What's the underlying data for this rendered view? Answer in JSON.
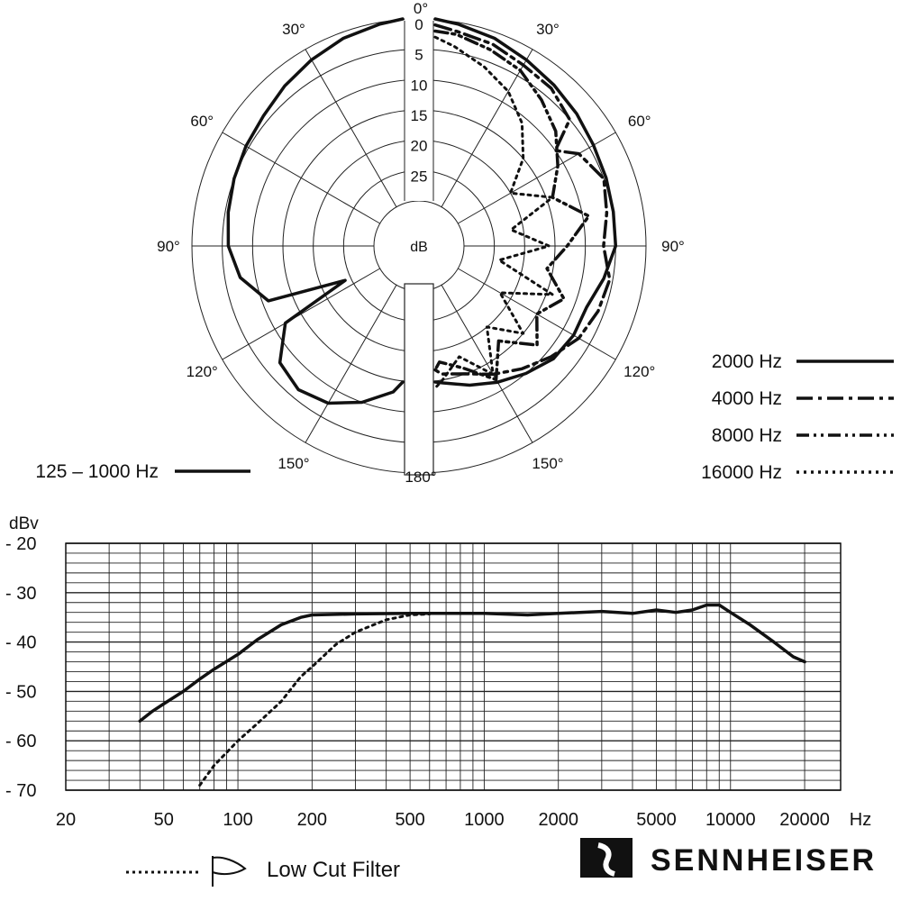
{
  "chart_data": [
    {
      "type": "polar",
      "center_label": "dB",
      "radial_ticks": [
        "0",
        "5",
        "10",
        "15",
        "20",
        "25"
      ],
      "radial_values": [
        0,
        5,
        10,
        15,
        20,
        25
      ],
      "angle_labels": {
        "left": [
          "30°",
          "60°",
          "90°",
          "120°",
          "150°"
        ],
        "right": [
          "30°",
          "60°",
          "90°",
          "120°",
          "150°"
        ],
        "top": "0°",
        "bottom": "180°"
      },
      "series": [
        {
          "name": "125 – 1000 Hz",
          "side": "left",
          "style": "solid",
          "angles": [
            0,
            10,
            20,
            30,
            40,
            50,
            60,
            70,
            80,
            90,
            100,
            110,
            115,
            120,
            130,
            140,
            150,
            160,
            170,
            180
          ],
          "values": [
            0,
            0.3,
            1,
            2,
            3,
            4,
            4.5,
            5,
            5.5,
            6,
            7.5,
            11,
            24,
            12,
            7.5,
            6.5,
            7.5,
            10,
            13,
            15
          ]
        },
        {
          "name": "2000 Hz",
          "side": "right",
          "style": "solid",
          "angles": [
            0,
            10,
            20,
            30,
            40,
            50,
            60,
            70,
            80,
            90,
            100,
            110,
            120,
            130,
            140,
            150,
            160,
            170,
            180
          ],
          "values": [
            0,
            0.3,
            1,
            2,
            2.8,
            3.5,
            4.2,
            4.6,
            4.9,
            5,
            6.5,
            8,
            8,
            8.5,
            10,
            11.5,
            13,
            14.5,
            15
          ]
        },
        {
          "name": "4000 Hz",
          "side": "right",
          "style": "dashdot",
          "angles": [
            0,
            10,
            20,
            30,
            40,
            50,
            55,
            60,
            70,
            80,
            90,
            100,
            110,
            120,
            130,
            140,
            150,
            160,
            170,
            180
          ],
          "values": [
            1,
            1.5,
            2,
            3,
            3.5,
            5,
            10,
            7,
            5,
            6,
            7,
            5.5,
            6,
            7,
            9,
            11,
            13,
            15,
            16,
            17
          ]
        },
        {
          "name": "8000 Hz",
          "side": "right",
          "style": "dashdotdot",
          "angles": [
            0,
            10,
            20,
            30,
            40,
            50,
            60,
            70,
            80,
            90,
            100,
            110,
            120,
            130,
            140,
            150,
            160,
            170,
            180
          ],
          "values": [
            2,
            2,
            3,
            4,
            6,
            8,
            11,
            14,
            9,
            13,
            16,
            12,
            15,
            12,
            17,
            12,
            16,
            18,
            17
          ]
        },
        {
          "name": "16000 Hz",
          "side": "right",
          "style": "dotted",
          "angles": [
            0,
            10,
            20,
            30,
            40,
            50,
            60,
            70,
            80,
            90,
            100,
            110,
            120,
            130,
            140,
            150,
            160,
            170,
            180
          ],
          "values": [
            3,
            4,
            6,
            8,
            11,
            15,
            20,
            14,
            22,
            16,
            24,
            14,
            22,
            15,
            20,
            13,
            18,
            15,
            14
          ]
        }
      ],
      "legend": {
        "left": {
          "label": "125 – 1000 Hz",
          "style": "solid"
        },
        "right": [
          {
            "label": "2000 Hz",
            "style": "solid"
          },
          {
            "label": "4000 Hz",
            "style": "dashdot"
          },
          {
            "label": "8000 Hz",
            "style": "dashdotdot"
          },
          {
            "label": "16000 Hz",
            "style": "dotted"
          }
        ]
      }
    },
    {
      "type": "line",
      "xscale": "log",
      "xlim": [
        20,
        28000
      ],
      "ylim": [
        -70,
        -20
      ],
      "ylabel": "dBv",
      "xunit": "Hz",
      "yticks": [
        -20,
        -30,
        -40,
        -50,
        -60,
        -70
      ],
      "ytick_labels": [
        "- 20",
        "- 30",
        "- 40",
        "- 50",
        "- 60",
        "- 70"
      ],
      "xticks": [
        20,
        50,
        100,
        200,
        500,
        1000,
        2000,
        5000,
        10000,
        20000
      ],
      "xtick_labels": [
        "20",
        "50",
        "100",
        "200",
        "500",
        "1000",
        "2000",
        "5000",
        "10000",
        "20000"
      ],
      "grid": true,
      "series": [
        {
          "style": "solid",
          "x": [
            40,
            45,
            50,
            60,
            70,
            80,
            100,
            120,
            150,
            180,
            200,
            300,
            500,
            1000,
            1500,
            2000,
            3000,
            4000,
            5000,
            6000,
            7000,
            8000,
            9000,
            10000,
            12000,
            15000,
            18000,
            20000
          ],
          "y": [
            -56,
            -54,
            -52.5,
            -50,
            -47.5,
            -45.5,
            -42.5,
            -39.5,
            -36.5,
            -35,
            -34.5,
            -34.3,
            -34.2,
            -34.2,
            -34.5,
            -34.2,
            -33.8,
            -34.2,
            -33.5,
            -34,
            -33.5,
            -32.5,
            -32.5,
            -34,
            -36.5,
            -40,
            -43,
            -44
          ]
        },
        {
          "name": "Low Cut Filter",
          "style": "dotted",
          "x": [
            70,
            80,
            100,
            120,
            150,
            180,
            200,
            250,
            300,
            400,
            500,
            600
          ],
          "y": [
            -69,
            -65,
            -60,
            -56.5,
            -52,
            -47,
            -45,
            -40.5,
            -38,
            -35.5,
            -34.5,
            -34.3
          ]
        }
      ],
      "legend": {
        "label": "Low Cut Filter",
        "style": "dotted"
      }
    }
  ],
  "brand": "SENNHEISER"
}
